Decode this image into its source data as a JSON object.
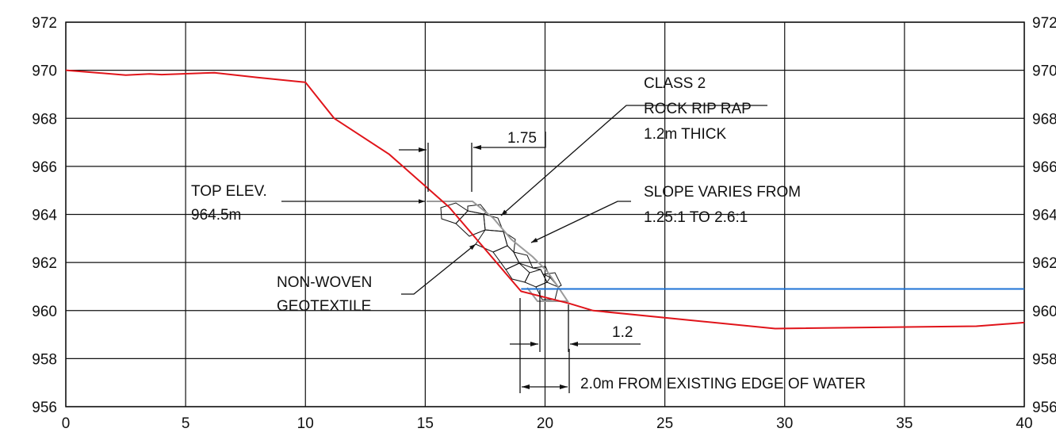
{
  "colors": {
    "ground": "#e0141a",
    "water": "#1e73d6",
    "riprap": "#9a9a9a",
    "grid": "#111111",
    "ink": "#111111"
  },
  "axes": {
    "x_ticks": [
      "0",
      "5",
      "10",
      "15",
      "20",
      "25",
      "30",
      "35",
      "40"
    ],
    "y_ticks_left": [
      "972",
      "970",
      "968",
      "966",
      "964",
      "962",
      "960",
      "958",
      "956"
    ],
    "y_ticks_right": [
      "972",
      "970",
      "968",
      "966",
      "964",
      "962",
      "960",
      "958",
      "956"
    ]
  },
  "chart_data": {
    "type": "line",
    "xlim": [
      0,
      40
    ],
    "ylim": [
      956,
      972
    ],
    "grid": true,
    "series": [
      {
        "values_xy": [
          [
            0,
            970
          ],
          [
            2.5,
            969.8
          ],
          [
            3.5,
            969.85
          ],
          [
            4,
            969.82
          ],
          [
            6.2,
            969.9
          ],
          [
            8,
            969.7
          ],
          [
            10,
            969.5
          ],
          [
            11.2,
            968
          ],
          [
            13.5,
            966.5
          ],
          [
            16,
            964.3
          ],
          [
            19,
            960.8
          ],
          [
            21,
            960.3
          ],
          [
            22,
            960
          ],
          [
            29.6,
            959.25
          ],
          [
            38,
            959.35
          ],
          [
            40,
            959.5
          ]
        ]
      },
      {
        "values_xy": [
          [
            19,
            960.9
          ],
          [
            40,
            960.9
          ]
        ]
      }
    ]
  },
  "annotations": {
    "class2": {
      "line1": "CLASS 2",
      "line2": "ROCK RIP RAP",
      "line3": "1.2m THICK"
    },
    "dim_top": "1.75",
    "top_elev": {
      "line1": "TOP ELEV.",
      "line2": "964.5m"
    },
    "slope": {
      "line1": "SLOPE VARIES FROM",
      "line2": "1.25:1 TO 2.6:1"
    },
    "geotextile": {
      "line1": "NON-WOVEN",
      "line2": "GEOTEXTILE"
    },
    "dim_bottom": "1.2",
    "edge_of_water": "2.0m FROM EXISTING EDGE OF WATER"
  }
}
